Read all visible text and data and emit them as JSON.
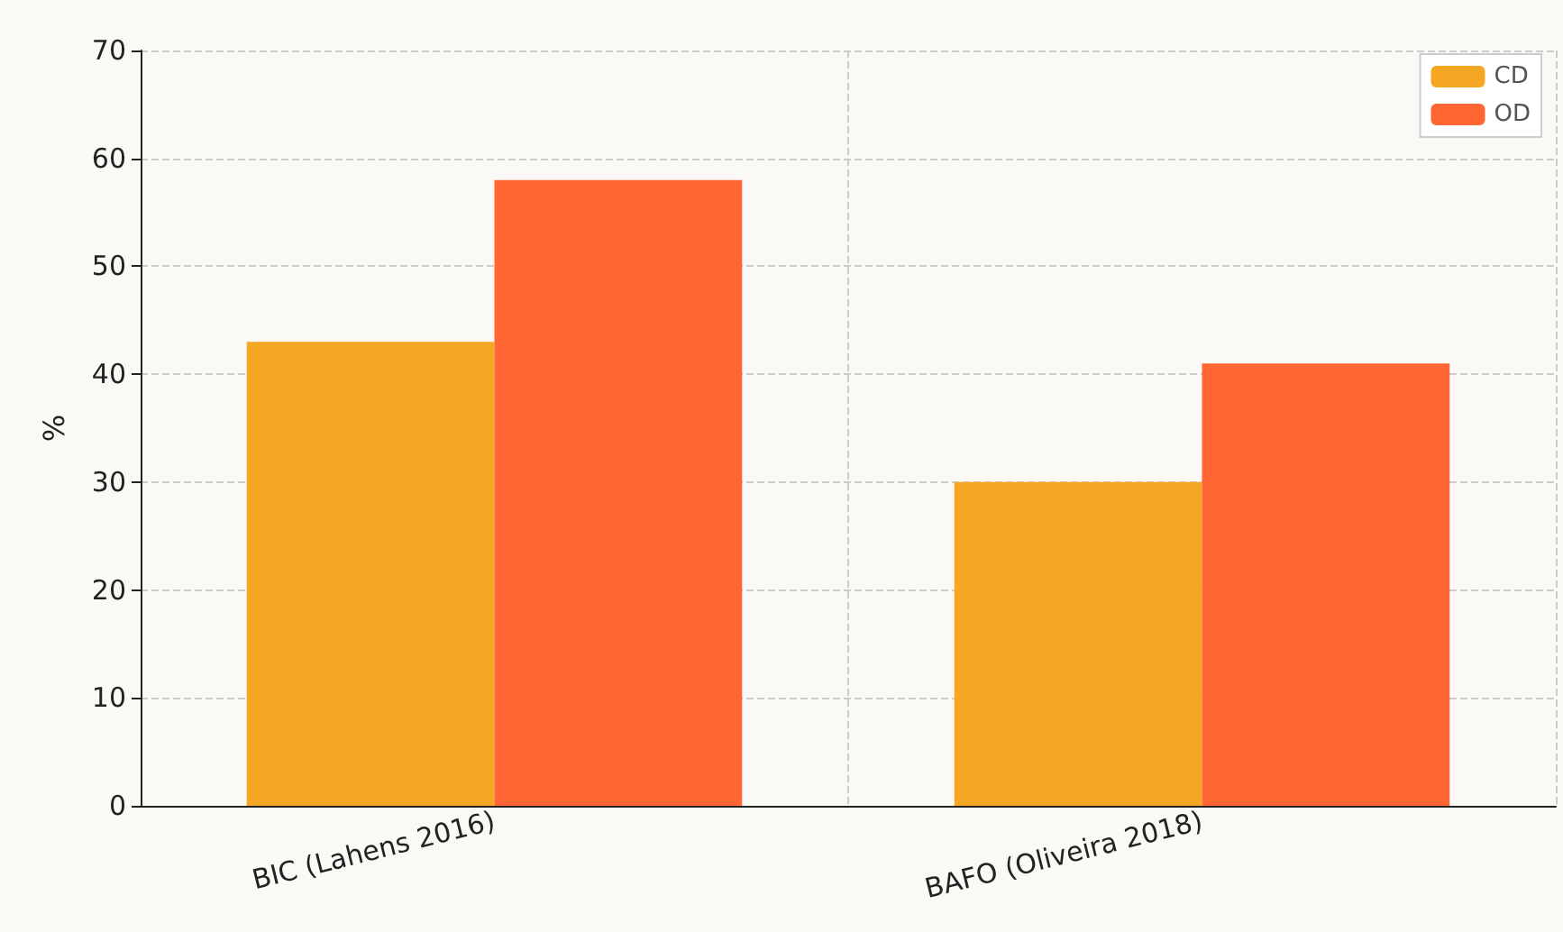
{
  "chart_data": {
    "type": "bar",
    "ylabel": "%",
    "categories": [
      "BIC (Lahens 2016)",
      "BAFO (Oliveira 2018)"
    ],
    "series": [
      {
        "name": "CD",
        "color": "#f5a623",
        "values": [
          43,
          30
        ]
      },
      {
        "name": "OD",
        "color": "#ff6633",
        "values": [
          58,
          41
        ]
      }
    ],
    "ylim": [
      0,
      70
    ],
    "yticks": [
      0,
      10,
      20,
      30,
      40,
      50,
      60,
      70
    ],
    "grid": true,
    "legend": "top right"
  }
}
